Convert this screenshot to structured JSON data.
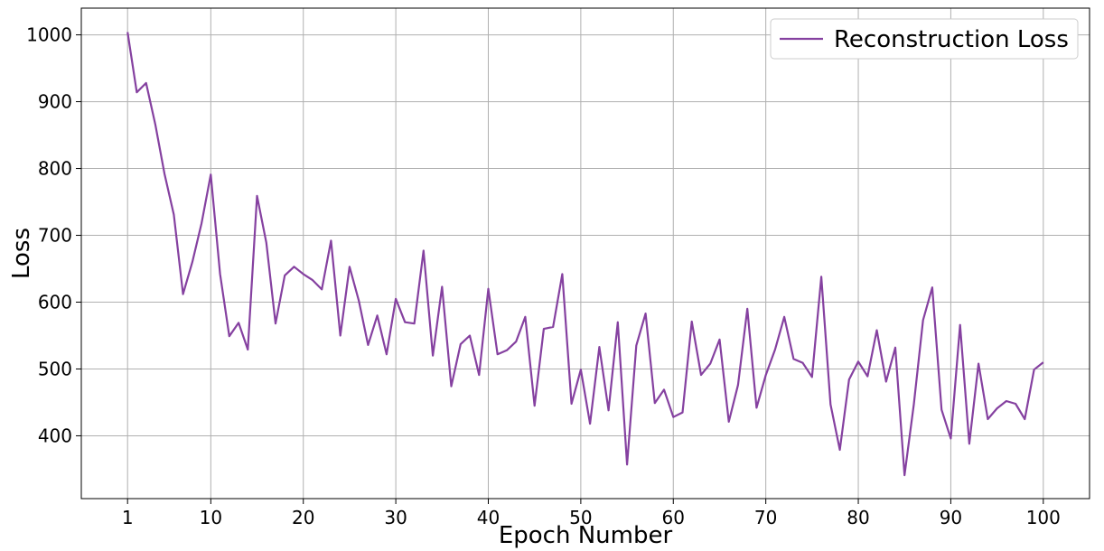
{
  "chart_data": {
    "type": "line",
    "title": "",
    "xlabel": "Epoch Number",
    "ylabel": "Loss",
    "xlim": [
      -4,
      105
    ],
    "ylim": [
      306,
      1040
    ],
    "xticks": [
      1,
      10,
      20,
      30,
      40,
      50,
      60,
      70,
      80,
      90,
      100
    ],
    "yticks": [
      400,
      500,
      600,
      700,
      800,
      900,
      1000
    ],
    "grid": true,
    "legend_position": "top-right",
    "series": [
      {
        "name": "Reconstruction Loss",
        "color": "#8541a0",
        "x": [
          1,
          2,
          3,
          4,
          5,
          6,
          7,
          8,
          9,
          10,
          11,
          12,
          13,
          14,
          15,
          16,
          17,
          18,
          19,
          20,
          21,
          22,
          23,
          24,
          25,
          26,
          27,
          28,
          29,
          30,
          31,
          32,
          33,
          34,
          35,
          36,
          37,
          38,
          39,
          40,
          41,
          42,
          43,
          44,
          45,
          46,
          47,
          48,
          49,
          50,
          51,
          52,
          53,
          54,
          55,
          56,
          57,
          58,
          59,
          60,
          61,
          62,
          63,
          64,
          65,
          66,
          67,
          68,
          69,
          70,
          71,
          72,
          73,
          74,
          75,
          76,
          77,
          78,
          79,
          80,
          81,
          82,
          83,
          84,
          85,
          86,
          87,
          88,
          89,
          90,
          91,
          92,
          93,
          94,
          95,
          96,
          97,
          98,
          99,
          100
        ],
        "values": [
          1004,
          914,
          928,
          866,
          792,
          731,
          612,
          660,
          718,
          791,
          642,
          549,
          569,
          529,
          759,
          689,
          568,
          640,
          653,
          642,
          633,
          619,
          692,
          550,
          653,
          602,
          536,
          580,
          522,
          605,
          570,
          568,
          677,
          520,
          623,
          474,
          537,
          550,
          491,
          620,
          522,
          528,
          541,
          578,
          445,
          560,
          563,
          642,
          448,
          499,
          418,
          533,
          438,
          570,
          357,
          535,
          583,
          449,
          469,
          428,
          435,
          571,
          491,
          508,
          544,
          421,
          476,
          590,
          442,
          491,
          529,
          578,
          515,
          509,
          488,
          638,
          447,
          379,
          484,
          511,
          489,
          558,
          481,
          532,
          341,
          447,
          573,
          622,
          439,
          396,
          566,
          388,
          508,
          425,
          441,
          452,
          448,
          425,
          499,
          510
        ]
      }
    ]
  }
}
